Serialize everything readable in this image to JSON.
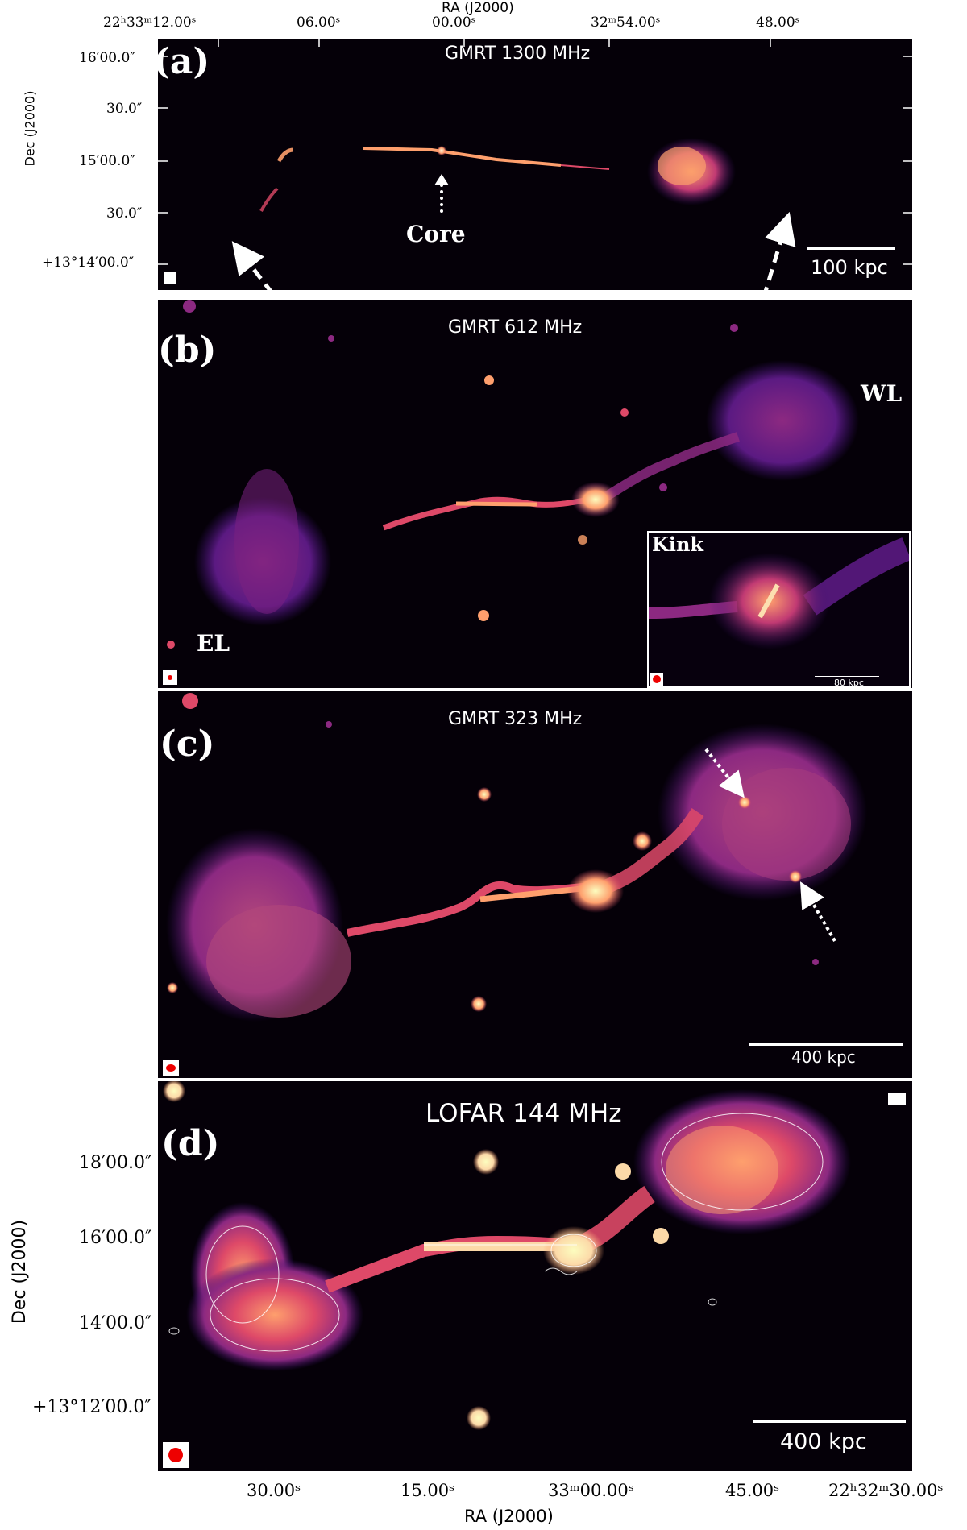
{
  "panel_a": {
    "label": "(a)",
    "title": "GMRT 1300 MHz",
    "ra_axis_title": "RA (J2000)",
    "dec_axis_title": "Dec (J2000)",
    "ra_ticks": [
      "22ʰ33ᵐ12.00ˢ",
      "06.00ˢ",
      "00.00ˢ",
      "32ᵐ54.00ˢ",
      "48.00ˢ"
    ],
    "dec_ticks": [
      "16′00.0″",
      "30.0″",
      "15′00.0″",
      "30.0″",
      "+13°14′00.0″"
    ],
    "core_label": "Core",
    "scalebar": "100 kpc"
  },
  "panel_b": {
    "label": "(b)",
    "title": "GMRT 612 MHz",
    "wl_label": "WL",
    "el_label": "EL",
    "inset_label": "Kink",
    "inset_scalebar": "80 kpc"
  },
  "panel_c": {
    "label": "(c)",
    "title": "GMRT 323 MHz",
    "scalebar": "400 kpc"
  },
  "panel_d": {
    "label": "(d)",
    "title": "LOFAR 144 MHz",
    "ra_axis_title": "RA (J2000)",
    "dec_axis_title": "Dec (J2000)",
    "ra_ticks": [
      "30.00ˢ",
      "15.00ˢ",
      "33ᵐ00.00ˢ",
      "45.00ˢ",
      "22ʰ32ᵐ30.00ˢ"
    ],
    "dec_ticks": [
      "18′00.0″",
      "16′00.0″",
      "14′00.0″",
      "+13°12′00.0″"
    ],
    "scalebar": "400 kpc"
  },
  "colors": {
    "background": "#050008",
    "colormap": [
      "#000004",
      "#3b0f70",
      "#8c2981",
      "#de4968",
      "#fe9f6d",
      "#fcfdbf"
    ],
    "annotation": "#ffffff"
  }
}
